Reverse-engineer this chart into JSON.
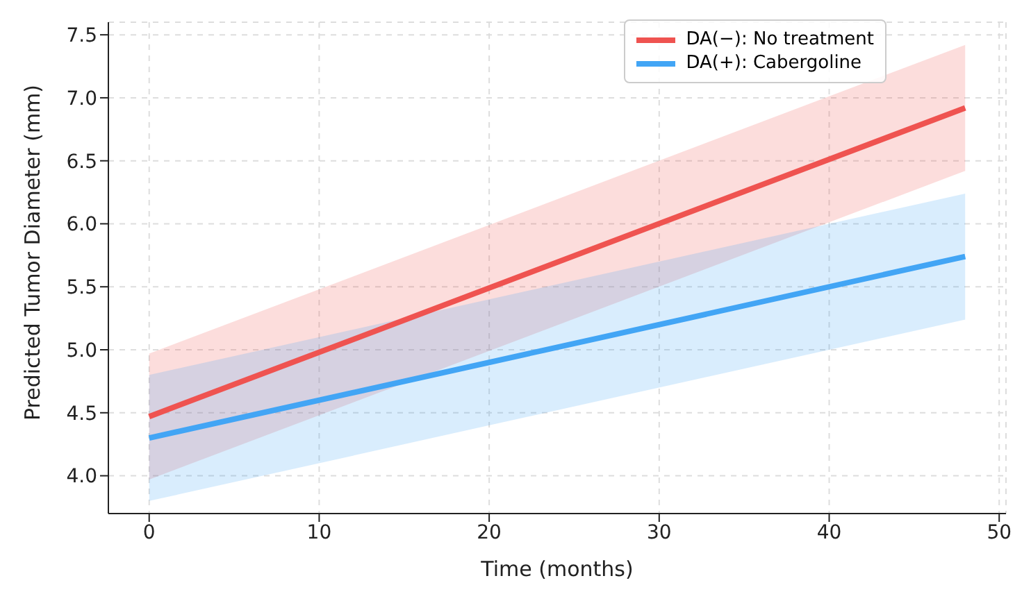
{
  "chart_data": {
    "type": "line",
    "xlabel": "Time (months)",
    "ylabel": "Predicted Tumor Diameter (mm)",
    "x": [
      0,
      48
    ],
    "series": [
      {
        "name": "DA(−): No treatment",
        "color": "#ef5350",
        "values": [
          4.47,
          6.92
        ],
        "lower": [
          3.97,
          6.42
        ],
        "upper": [
          4.97,
          7.42
        ]
      },
      {
        "name": "DA(+): Cabergoline",
        "color": "#42a5f5",
        "values": [
          4.3,
          5.74
        ],
        "lower": [
          3.8,
          5.24
        ],
        "upper": [
          4.8,
          6.24
        ]
      }
    ],
    "xlim": [
      -2.4,
      50.4
    ],
    "xticks": [
      0,
      10,
      20,
      30,
      40,
      50
    ],
    "ylim": [
      3.7,
      7.6
    ],
    "yticks": [
      {
        "value": 4,
        "label": "4.0"
      },
      {
        "value": 4.5,
        "label": "4.5"
      },
      {
        "value": 5,
        "label": "5.0"
      },
      {
        "value": 5.5,
        "label": "5.5"
      },
      {
        "value": 6,
        "label": "6.0"
      },
      {
        "value": 6.5,
        "label": "6.5"
      },
      {
        "value": 7,
        "label": "7.0"
      },
      {
        "value": 7.5,
        "label": "7.5"
      }
    ],
    "grid": true,
    "legend": "top right",
    "marker": "none",
    "line_style": "solid"
  }
}
